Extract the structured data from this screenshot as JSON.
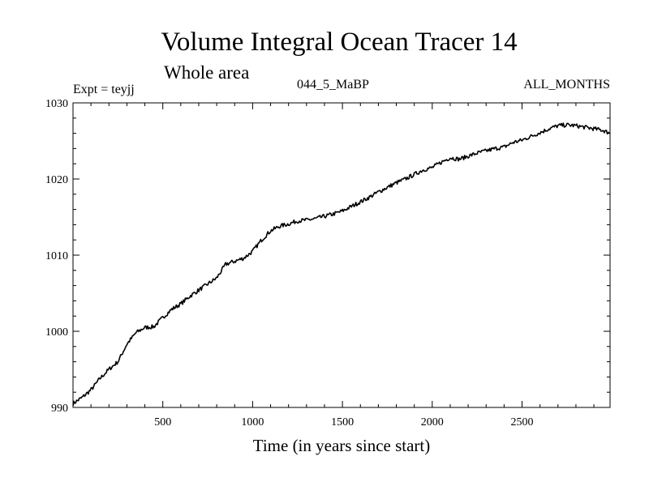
{
  "chart_data": {
    "type": "line",
    "title": "Volume Integral Ocean Tracer 14",
    "subtitle": "Whole area",
    "expt_label": "Expt = teyjj",
    "run_label": "044_5_MaBP",
    "months_label": "ALL_MONTHS",
    "xlabel": "Time (in years since start)",
    "ylabel": "",
    "xlim": [
      0,
      2990
    ],
    "ylim": [
      990,
      1030
    ],
    "x_ticks": [
      500,
      1000,
      1500,
      2000,
      2500
    ],
    "y_ticks": [
      990,
      1000,
      1010,
      1020,
      1030
    ],
    "series": [
      {
        "name": "Ocean Tracer 14",
        "x": [
          0,
          50,
          100,
          150,
          200,
          250,
          300,
          350,
          400,
          450,
          500,
          550,
          600,
          650,
          700,
          750,
          800,
          850,
          900,
          950,
          1000,
          1050,
          1100,
          1150,
          1200,
          1250,
          1300,
          1350,
          1400,
          1450,
          1500,
          1550,
          1600,
          1650,
          1700,
          1750,
          1800,
          1850,
          1900,
          1950,
          2000,
          2050,
          2100,
          2150,
          2200,
          2250,
          2300,
          2350,
          2400,
          2450,
          2500,
          2550,
          2600,
          2650,
          2700,
          2750,
          2800,
          2850,
          2900,
          2950,
          2990
        ],
        "values": [
          990.5,
          991.3,
          992.3,
          993.8,
          995.0,
          996.0,
          998.3,
          999.8,
          1000.5,
          1000.6,
          1001.8,
          1002.9,
          1003.6,
          1004.6,
          1005.4,
          1006.2,
          1007.0,
          1008.8,
          1009.2,
          1009.6,
          1010.5,
          1012.0,
          1013.2,
          1013.8,
          1014.1,
          1014.5,
          1014.6,
          1014.8,
          1015.1,
          1015.4,
          1015.8,
          1016.4,
          1017.0,
          1017.6,
          1018.3,
          1018.9,
          1019.5,
          1020.0,
          1020.6,
          1021.2,
          1021.5,
          1022.2,
          1022.8,
          1022.6,
          1023.0,
          1023.4,
          1023.7,
          1024.0,
          1024.2,
          1024.8,
          1025.1,
          1025.6,
          1026.1,
          1026.6,
          1027.0,
          1027.1,
          1027.0,
          1026.8,
          1026.6,
          1026.4,
          1026.0
        ]
      }
    ]
  }
}
